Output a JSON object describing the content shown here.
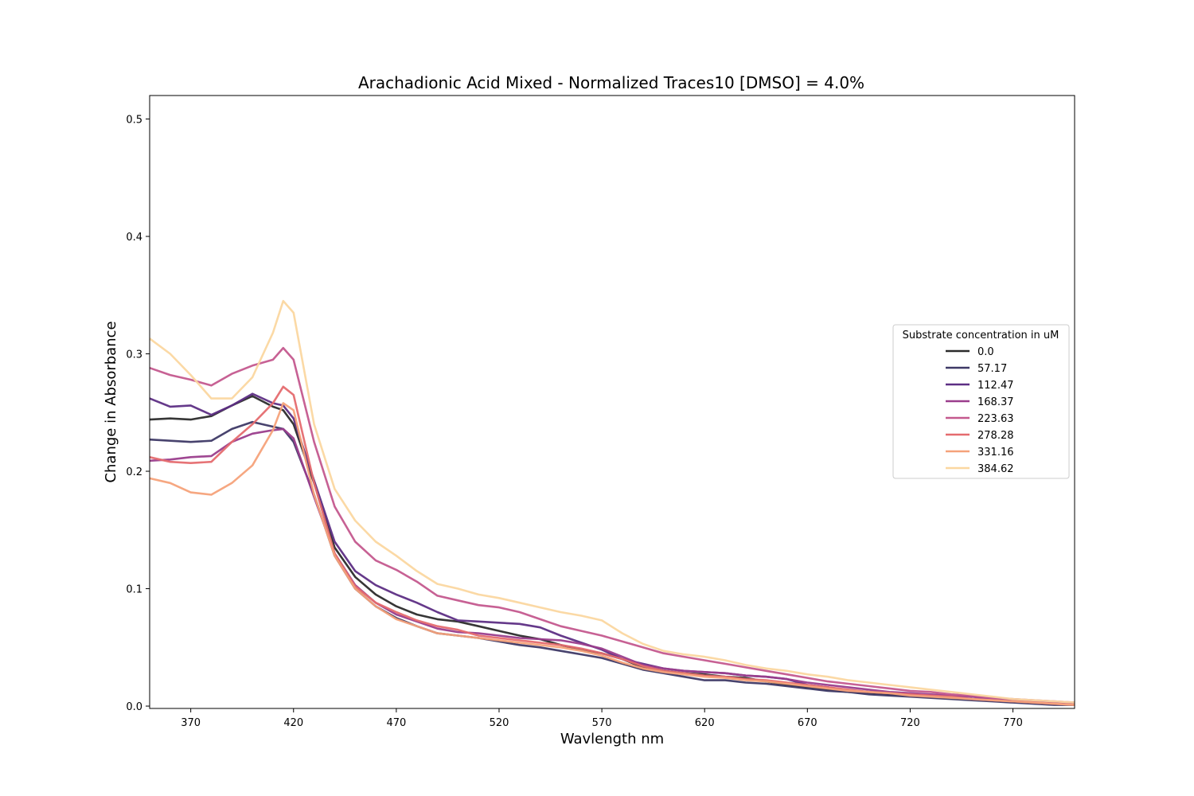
{
  "chart_data": {
    "type": "line",
    "title": "Arachadionic Acid Mixed - Normalized Traces10 [DMSO] = 4.0%",
    "xlabel": "Wavlength nm",
    "ylabel": "Change in Absorbance",
    "xlim": [
      350,
      800
    ],
    "ylim": [
      -0.002,
      0.52
    ],
    "xticks": [
      370,
      420,
      470,
      520,
      570,
      620,
      670,
      720,
      770
    ],
    "yticks": [
      0.0,
      0.1,
      0.2,
      0.3,
      0.4,
      0.5
    ],
    "xtick_labels": [
      "370",
      "420",
      "470",
      "520",
      "570",
      "620",
      "670",
      "720",
      "770"
    ],
    "ytick_labels": [
      "0.0",
      "0.1",
      "0.2",
      "0.3",
      "0.4",
      "0.5"
    ],
    "grid": false,
    "legend": {
      "title": "Substrate concentration in uM",
      "placement": "center-right"
    },
    "x": [
      350,
      360,
      370,
      380,
      390,
      400,
      410,
      415,
      420,
      430,
      440,
      450,
      460,
      470,
      480,
      490,
      500,
      510,
      520,
      530,
      540,
      550,
      560,
      570,
      580,
      590,
      600,
      610,
      620,
      630,
      640,
      650,
      660,
      670,
      680,
      690,
      700,
      710,
      720,
      730,
      740,
      750,
      760,
      770,
      780,
      790,
      800
    ],
    "series": [
      {
        "name": "0.0",
        "color": "#2b2b2b",
        "values": [
          0.244,
          0.245,
          0.244,
          0.247,
          0.256,
          0.264,
          0.255,
          0.252,
          0.24,
          0.19,
          0.135,
          0.11,
          0.095,
          0.085,
          0.078,
          0.074,
          0.072,
          0.068,
          0.064,
          0.06,
          0.057,
          0.052,
          0.048,
          0.045,
          0.04,
          0.033,
          0.03,
          0.028,
          0.027,
          0.025,
          0.024,
          0.021,
          0.018,
          0.016,
          0.014,
          0.012,
          0.011,
          0.01,
          0.009,
          0.008,
          0.007,
          0.006,
          0.005,
          0.004,
          0.003,
          0.002,
          0.001
        ]
      },
      {
        "name": "57.17",
        "color": "#3e3966",
        "values": [
          0.227,
          0.226,
          0.225,
          0.226,
          0.236,
          0.242,
          0.238,
          0.236,
          0.225,
          0.18,
          0.128,
          0.1,
          0.085,
          0.075,
          0.068,
          0.062,
          0.06,
          0.058,
          0.055,
          0.052,
          0.05,
          0.047,
          0.044,
          0.041,
          0.036,
          0.031,
          0.028,
          0.025,
          0.022,
          0.022,
          0.02,
          0.019,
          0.017,
          0.015,
          0.013,
          0.012,
          0.01,
          0.009,
          0.008,
          0.007,
          0.006,
          0.005,
          0.004,
          0.003,
          0.002,
          0.001,
          0.001
        ]
      },
      {
        "name": "112.47",
        "color": "#5d2e84",
        "values": [
          0.262,
          0.255,
          0.256,
          0.248,
          0.256,
          0.266,
          0.258,
          0.256,
          0.245,
          0.192,
          0.14,
          0.115,
          0.103,
          0.095,
          0.088,
          0.08,
          0.073,
          0.072,
          0.071,
          0.07,
          0.067,
          0.06,
          0.054,
          0.048,
          0.04,
          0.036,
          0.032,
          0.03,
          0.029,
          0.028,
          0.026,
          0.025,
          0.023,
          0.018,
          0.016,
          0.013,
          0.012,
          0.011,
          0.01,
          0.009,
          0.008,
          0.006,
          0.005,
          0.004,
          0.004,
          0.003,
          0.002
        ]
      },
      {
        "name": "168.37",
        "color": "#9a3d8c",
        "values": [
          0.209,
          0.21,
          0.212,
          0.213,
          0.225,
          0.232,
          0.235,
          0.236,
          0.228,
          0.178,
          0.13,
          0.103,
          0.088,
          0.078,
          0.072,
          0.066,
          0.063,
          0.062,
          0.06,
          0.058,
          0.057,
          0.056,
          0.053,
          0.049,
          0.042,
          0.035,
          0.032,
          0.03,
          0.029,
          0.028,
          0.026,
          0.025,
          0.023,
          0.02,
          0.018,
          0.016,
          0.014,
          0.012,
          0.011,
          0.01,
          0.009,
          0.008,
          0.006,
          0.005,
          0.004,
          0.003,
          0.002
        ]
      },
      {
        "name": "223.63",
        "color": "#c4598e",
        "values": [
          0.288,
          0.282,
          0.278,
          0.273,
          0.283,
          0.29,
          0.295,
          0.305,
          0.295,
          0.225,
          0.17,
          0.14,
          0.124,
          0.116,
          0.106,
          0.094,
          0.09,
          0.086,
          0.084,
          0.08,
          0.074,
          0.068,
          0.064,
          0.06,
          0.055,
          0.05,
          0.045,
          0.042,
          0.039,
          0.036,
          0.033,
          0.03,
          0.027,
          0.024,
          0.021,
          0.019,
          0.017,
          0.015,
          0.013,
          0.012,
          0.01,
          0.009,
          0.007,
          0.006,
          0.005,
          0.004,
          0.003
        ]
      },
      {
        "name": "278.28",
        "color": "#e56b6f",
        "values": [
          0.212,
          0.208,
          0.207,
          0.208,
          0.225,
          0.24,
          0.258,
          0.272,
          0.265,
          0.19,
          0.13,
          0.102,
          0.088,
          0.08,
          0.073,
          0.068,
          0.065,
          0.06,
          0.058,
          0.056,
          0.054,
          0.052,
          0.049,
          0.045,
          0.04,
          0.034,
          0.03,
          0.028,
          0.026,
          0.025,
          0.023,
          0.022,
          0.02,
          0.018,
          0.016,
          0.014,
          0.012,
          0.011,
          0.01,
          0.009,
          0.008,
          0.006,
          0.005,
          0.004,
          0.003,
          0.002,
          0.001
        ]
      },
      {
        "name": "331.16",
        "color": "#f5a27a",
        "values": [
          0.194,
          0.19,
          0.182,
          0.18,
          0.19,
          0.205,
          0.235,
          0.258,
          0.252,
          0.18,
          0.128,
          0.1,
          0.085,
          0.074,
          0.068,
          0.062,
          0.06,
          0.058,
          0.056,
          0.054,
          0.052,
          0.05,
          0.047,
          0.043,
          0.037,
          0.032,
          0.029,
          0.027,
          0.025,
          0.024,
          0.022,
          0.021,
          0.019,
          0.017,
          0.015,
          0.013,
          0.012,
          0.011,
          0.009,
          0.008,
          0.007,
          0.006,
          0.005,
          0.004,
          0.003,
          0.002,
          0.001
        ]
      },
      {
        "name": "384.62",
        "color": "#fbd7a0",
        "values": [
          0.313,
          0.3,
          0.282,
          0.262,
          0.262,
          0.28,
          0.318,
          0.345,
          0.335,
          0.24,
          0.185,
          0.158,
          0.14,
          0.128,
          0.115,
          0.104,
          0.1,
          0.095,
          0.092,
          0.088,
          0.084,
          0.08,
          0.077,
          0.073,
          0.062,
          0.053,
          0.047,
          0.044,
          0.042,
          0.039,
          0.035,
          0.032,
          0.03,
          0.027,
          0.025,
          0.022,
          0.02,
          0.018,
          0.016,
          0.014,
          0.012,
          0.01,
          0.008,
          0.006,
          0.005,
          0.004,
          0.003
        ]
      }
    ]
  }
}
